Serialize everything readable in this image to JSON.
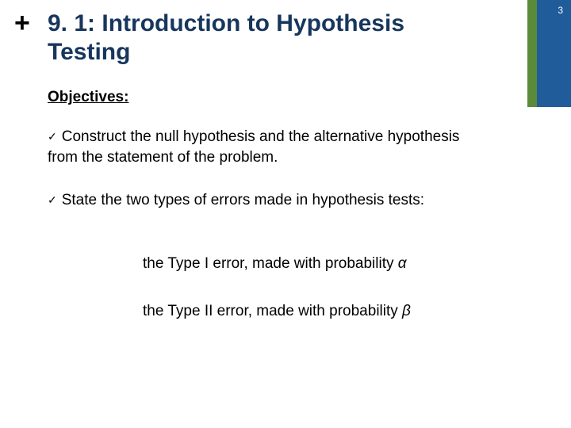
{
  "pageNumber": "3",
  "plusSymbol": "+",
  "title": "9. 1: Introduction to Hypothesis Testing",
  "objectivesLabel": "Objectives:",
  "checkmark": "✓",
  "objectives": [
    "Construct the null hypothesis and the alternative hypothesis from the statement of the problem.",
    "State the two types of errors made in hypothesis tests:"
  ],
  "subItems": [
    {
      "prefix": "the Type I error, made with probability ",
      "symbol": "α"
    },
    {
      "prefix": "the Type II error, made with probability ",
      "symbol": "β"
    }
  ],
  "colors": {
    "sidebarGreen": "#5a8a3a",
    "sidebarBlue": "#1f5c99",
    "titleColor": "#17365d",
    "textColor": "#000000",
    "background": "#ffffff"
  },
  "layout": {
    "obj1Top": 160,
    "obj2Top": 240,
    "sub1Top": 320,
    "sub2Top": 380
  },
  "typography": {
    "titleSize": 30,
    "bodySize": 19,
    "pageNumSize": 12,
    "plusSize": 34
  }
}
